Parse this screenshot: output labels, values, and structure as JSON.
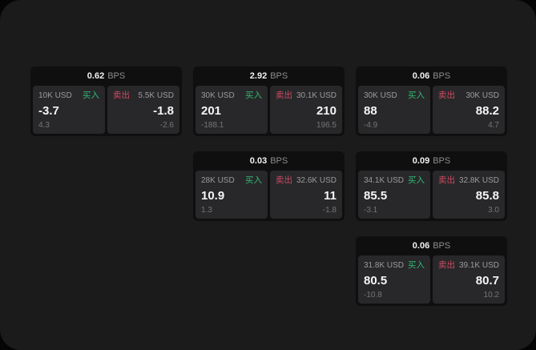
{
  "labels": {
    "bps_suffix": "BPS",
    "buy": "买入",
    "sell": "卖出"
  },
  "colors": {
    "outer_background": "#050505",
    "surface_background": "#1b1b1c",
    "card_background": "#0f0f10",
    "tile_background": "#28282a",
    "buy_accent": "#31b873",
    "sell_accent": "#cf4a63"
  },
  "cards": [
    {
      "bps": "0.62",
      "grid": {
        "row": 1,
        "col": 1
      },
      "buy": {
        "amount": "10K USD",
        "value": "-3.7",
        "change": "4.3"
      },
      "sell": {
        "amount": "5.5K USD",
        "value": "-1.8",
        "change": "-2.6"
      }
    },
    {
      "bps": "2.92",
      "grid": {
        "row": 1,
        "col": 2
      },
      "buy": {
        "amount": "30K USD",
        "value": "201",
        "change": "-188.1"
      },
      "sell": {
        "amount": "30.1K USD",
        "value": "210",
        "change": "196.5"
      }
    },
    {
      "bps": "0.06",
      "grid": {
        "row": 1,
        "col": 3
      },
      "buy": {
        "amount": "30K USD",
        "value": "88",
        "change": "-4.9"
      },
      "sell": {
        "amount": "30K USD",
        "value": "88.2",
        "change": "4.7"
      }
    },
    {
      "bps": "0.03",
      "grid": {
        "row": 2,
        "col": 2
      },
      "buy": {
        "amount": "28K USD",
        "value": "10.9",
        "change": "1.3"
      },
      "sell": {
        "amount": "32.6K USD",
        "value": "11",
        "change": "-1.8"
      }
    },
    {
      "bps": "0.09",
      "grid": {
        "row": 2,
        "col": 3
      },
      "buy": {
        "amount": "34.1K USD",
        "value": "85.5",
        "change": "-3.1"
      },
      "sell": {
        "amount": "32.8K USD",
        "value": "85.8",
        "change": "3.0"
      }
    },
    {
      "bps": "0.06",
      "grid": {
        "row": 3,
        "col": 3
      },
      "buy": {
        "amount": "31.8K USD",
        "value": "80.5",
        "change": "-10.8"
      },
      "sell": {
        "amount": "39.1K USD",
        "value": "80.7",
        "change": "10.2"
      }
    }
  ]
}
